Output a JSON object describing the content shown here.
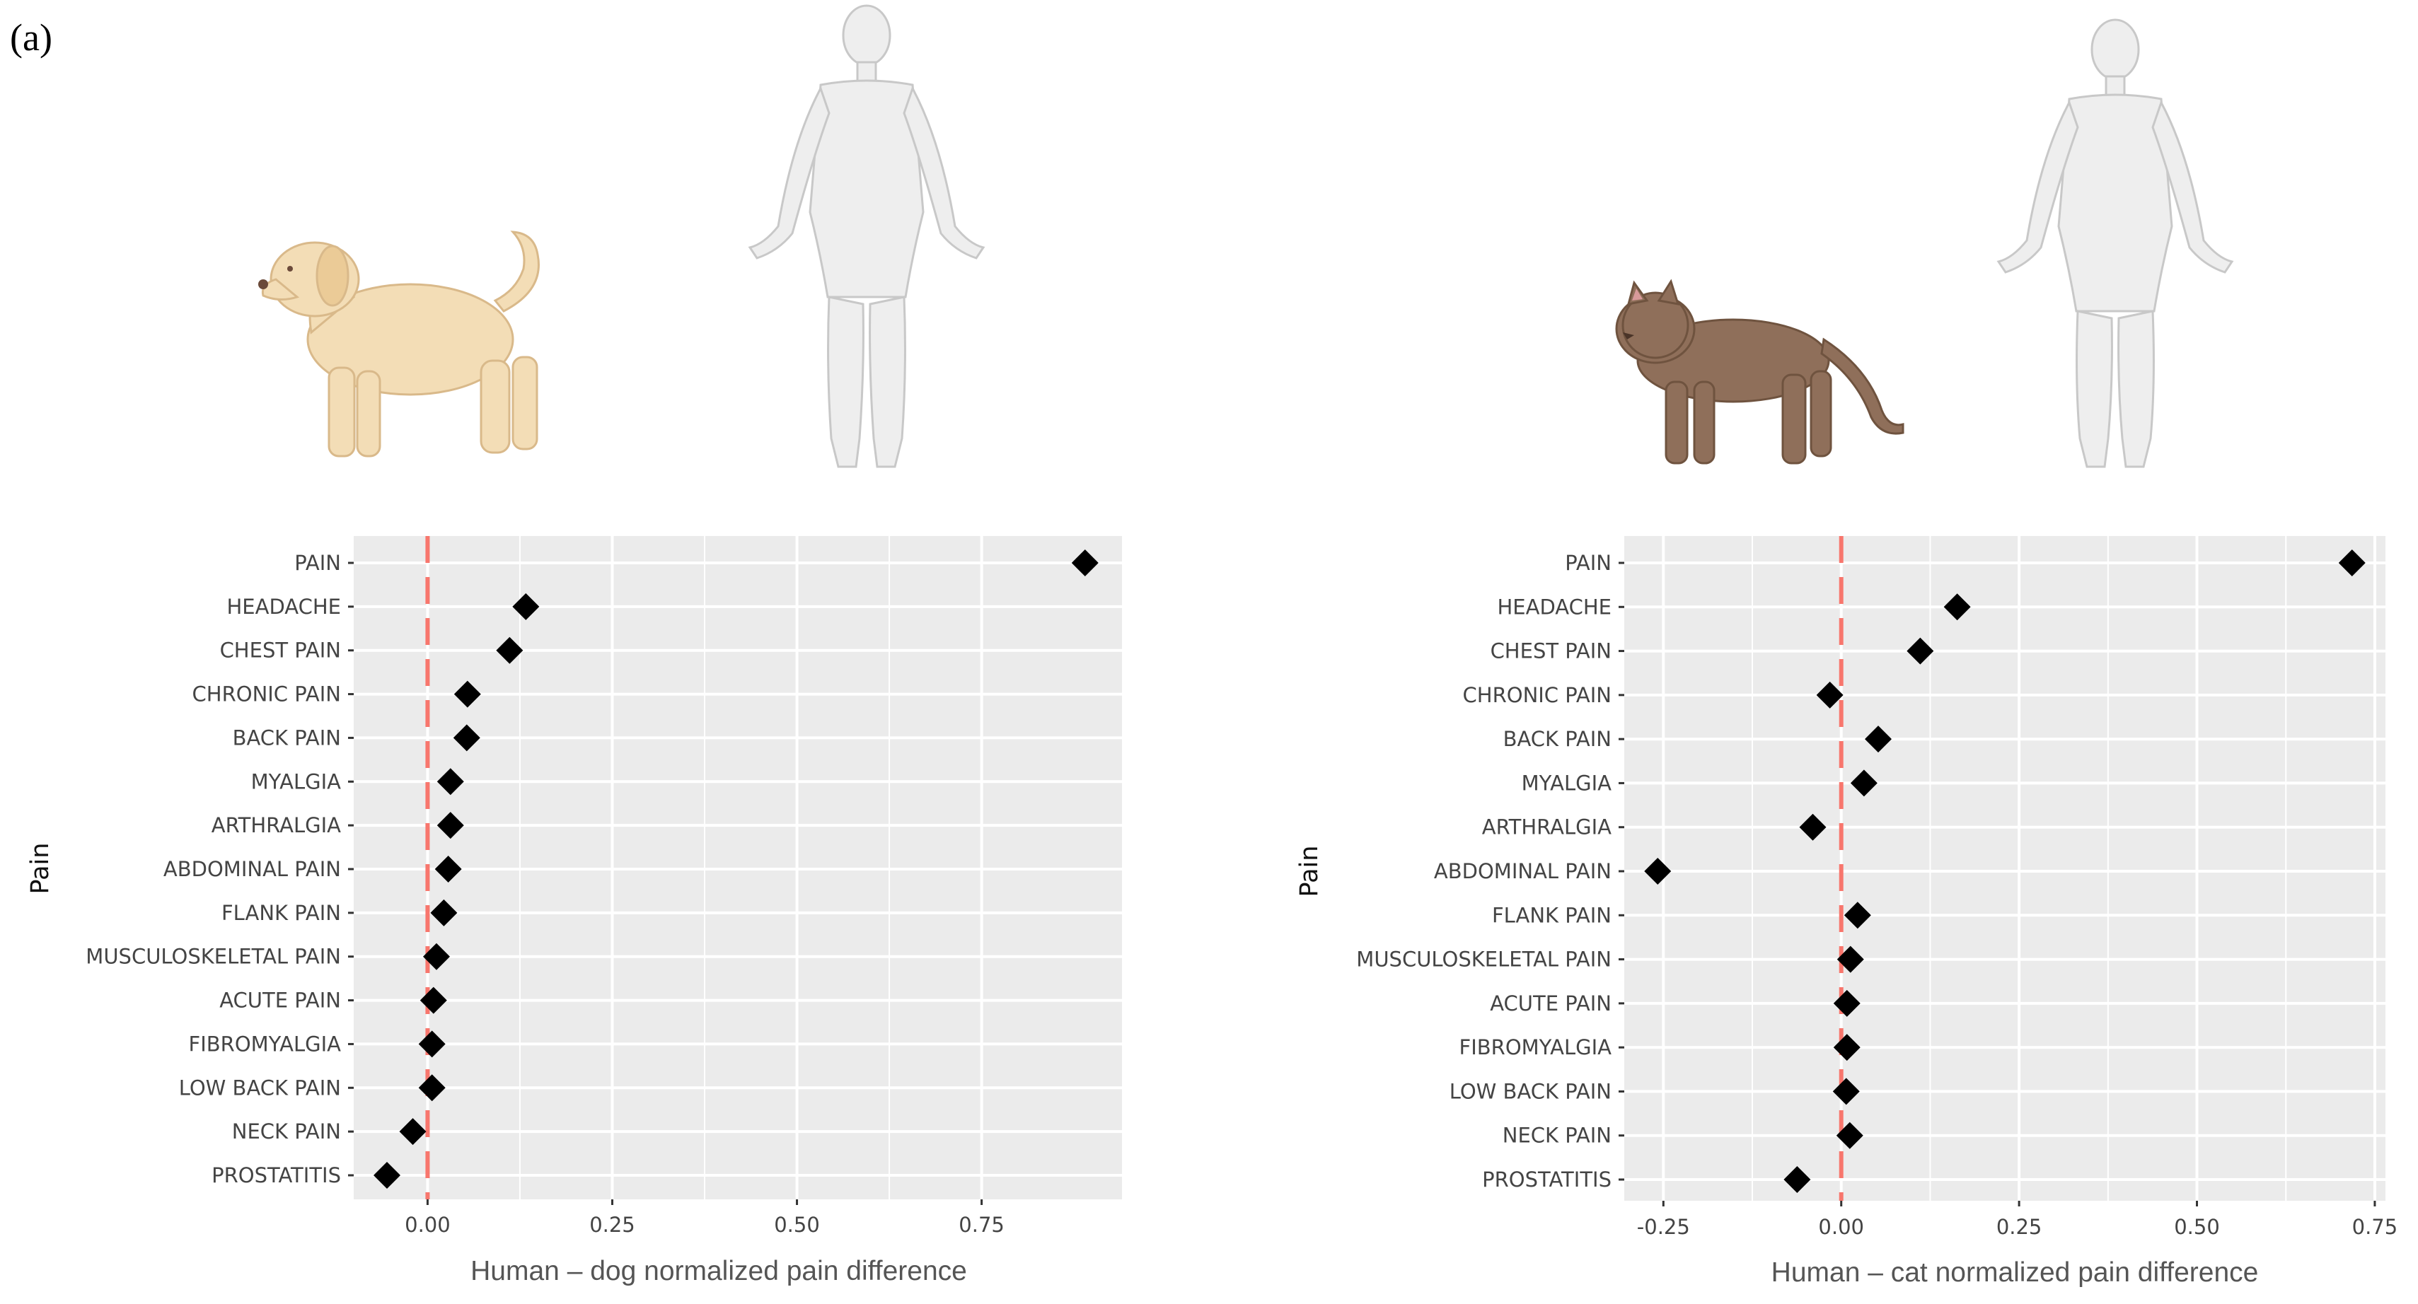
{
  "figure_label": "(a)",
  "colors": {
    "panel_bg": "#ebebeb",
    "grid": "#ffffff",
    "marker": "#000000",
    "zero_line": "#f8766d",
    "dog_fur": "#f3ddb6",
    "cat_fur": "#8f6f5a",
    "human_body": "#eeeeee"
  },
  "icons": {
    "left_animal": "dog-icon",
    "right_animal": "cat-icon",
    "human": "human-body-icon"
  },
  "chart_data": [
    {
      "type": "scatter",
      "marker": "diamond",
      "title": "",
      "xlabel": "Human – dog normalized pain difference",
      "ylabel": "Pain",
      "xlim": [
        -0.1,
        0.94
      ],
      "xticks": [
        0.0,
        0.25,
        0.5,
        0.75
      ],
      "xtick_labels": [
        "0.00",
        "0.25",
        "0.50",
        "0.75"
      ],
      "reference_line": 0,
      "categories": [
        "PAIN",
        "HEADACHE",
        "CHEST PAIN",
        "CHRONIC PAIN",
        "BACK PAIN",
        "MYALGIA",
        "ARTHRALGIA",
        "ABDOMINAL PAIN",
        "FLANK PAIN",
        "MUSCULOSKELETAL PAIN",
        "ACUTE PAIN",
        "FIBROMYALGIA",
        "LOW BACK PAIN",
        "NECK PAIN",
        "PROSTATITIS"
      ],
      "values": [
        0.89,
        0.133,
        0.111,
        0.054,
        0.053,
        0.031,
        0.031,
        0.028,
        0.022,
        0.012,
        0.008,
        0.006,
        0.006,
        -0.02,
        -0.055
      ]
    },
    {
      "type": "scatter",
      "marker": "diamond",
      "title": "",
      "xlabel": "Human – cat normalized pain difference",
      "ylabel": "Pain",
      "xlim": [
        -0.305,
        0.765
      ],
      "xticks": [
        -0.25,
        0.0,
        0.25,
        0.5,
        0.75
      ],
      "xtick_labels": [
        "-0.25",
        "0.00",
        "0.25",
        "0.50",
        "0.75"
      ],
      "reference_line": 0,
      "categories": [
        "PAIN",
        "HEADACHE",
        "CHEST PAIN",
        "CHRONIC PAIN",
        "BACK PAIN",
        "MYALGIA",
        "ARTHRALGIA",
        "ABDOMINAL PAIN",
        "FLANK PAIN",
        "MUSCULOSKELETAL PAIN",
        "ACUTE PAIN",
        "FIBROMYALGIA",
        "LOW BACK PAIN",
        "NECK PAIN",
        "PROSTATITIS"
      ],
      "values": [
        0.718,
        0.163,
        0.111,
        -0.016,
        0.052,
        0.032,
        -0.04,
        -0.258,
        0.023,
        0.013,
        0.008,
        0.008,
        0.007,
        0.012,
        -0.062
      ]
    }
  ]
}
